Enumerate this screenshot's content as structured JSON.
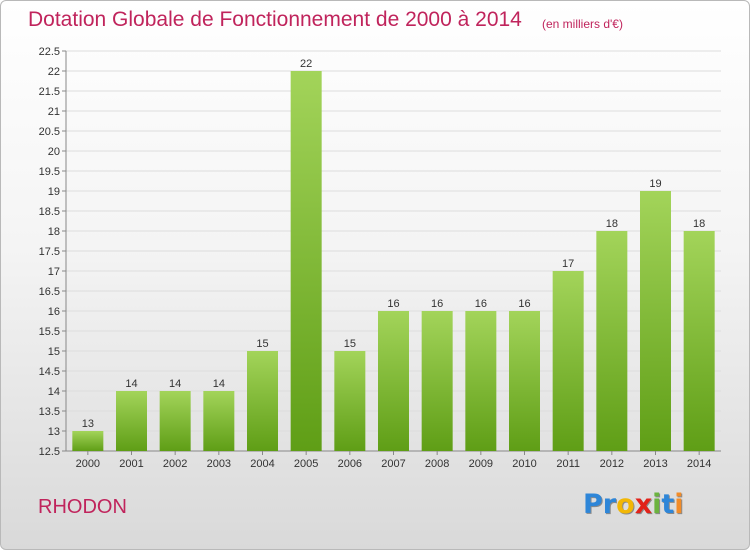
{
  "chart_data": {
    "type": "bar",
    "title": "Dotation Globale de Fonctionnement de 2000 à 2014",
    "subtitle": "(en milliers d'€)",
    "categories": [
      "2000",
      "2001",
      "2002",
      "2003",
      "2004",
      "2005",
      "2006",
      "2007",
      "2008",
      "2009",
      "2010",
      "2011",
      "2012",
      "2013",
      "2014"
    ],
    "values": [
      13,
      14,
      14,
      14,
      15,
      22,
      15,
      16,
      16,
      16,
      16,
      17,
      18,
      19,
      18
    ],
    "value_labels": [
      "13",
      "14",
      "14",
      "14",
      "15",
      "22",
      "15",
      "16",
      "16",
      "16",
      "16",
      "17",
      "18",
      "19",
      "18"
    ],
    "ylim": [
      12.5,
      22.5
    ],
    "yticks": [
      12.5,
      13,
      13.5,
      14,
      14.5,
      15,
      15.5,
      16,
      16.5,
      17,
      17.5,
      18,
      18.5,
      19,
      19.5,
      20,
      20.5,
      21,
      21.5,
      22,
      22.5
    ],
    "ytick_labels": [
      "12.5",
      "13",
      "13.5",
      "14",
      "14.5",
      "15",
      "15.5",
      "16",
      "16.5",
      "17",
      "17.5",
      "18",
      "18.5",
      "19",
      "19.5",
      "20",
      "20.5",
      "21",
      "21.5",
      "22",
      "22.5"
    ],
    "grid": true,
    "colors": {
      "bar_top": "#a3d45a",
      "bar_bottom": "#5f9e16",
      "grid": "#dddddd",
      "title": "#c0245c"
    }
  },
  "footer": {
    "commune": "RHODON",
    "logo_letters": [
      {
        "ch": "P",
        "color": "#2e86d8"
      },
      {
        "ch": "r",
        "color": "#2e86d8"
      },
      {
        "ch": "o",
        "color": "#f2b705"
      },
      {
        "ch": "x",
        "color": "#e2231a"
      },
      {
        "ch": "i",
        "color": "#6cb33f"
      },
      {
        "ch": "t",
        "color": "#2e86d8"
      },
      {
        "ch": "i",
        "color": "#f28c28"
      }
    ]
  }
}
